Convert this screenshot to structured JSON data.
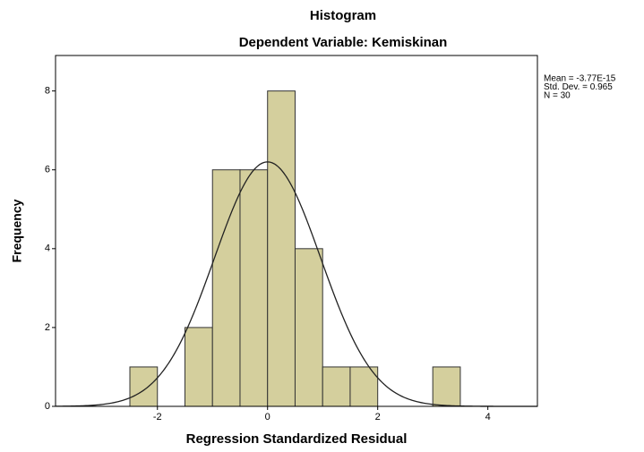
{
  "chart_data": {
    "type": "histogram",
    "title": "Histogram",
    "subtitle": "Dependent Variable: Kemiskinan",
    "x_label": "Regression Standardized Residual",
    "y_label": "Frequency",
    "bins": [
      -2.5,
      -2,
      -1.5,
      -1,
      -0.5,
      0,
      0.5,
      1,
      1.5,
      2,
      2.5,
      3,
      3.5
    ],
    "values": [
      1,
      0,
      2,
      6,
      6,
      8,
      4,
      1,
      1,
      0,
      0,
      1
    ],
    "color": "#d4cf9d",
    "xlim": [
      -3.85,
      4.9
    ],
    "xticks": [
      -2,
      0,
      2,
      4
    ],
    "ylim": [
      0,
      8.9
    ],
    "yticks": [
      0,
      2,
      4,
      6,
      8
    ],
    "stats": [
      {
        "label": "Mean = -3.77E-15",
        "value": -3.77e-15
      },
      {
        "label": "Std. Dev. = 0.965",
        "value": 0.965
      },
      {
        "label": "N = 30",
        "value": 30
      }
    ]
  }
}
